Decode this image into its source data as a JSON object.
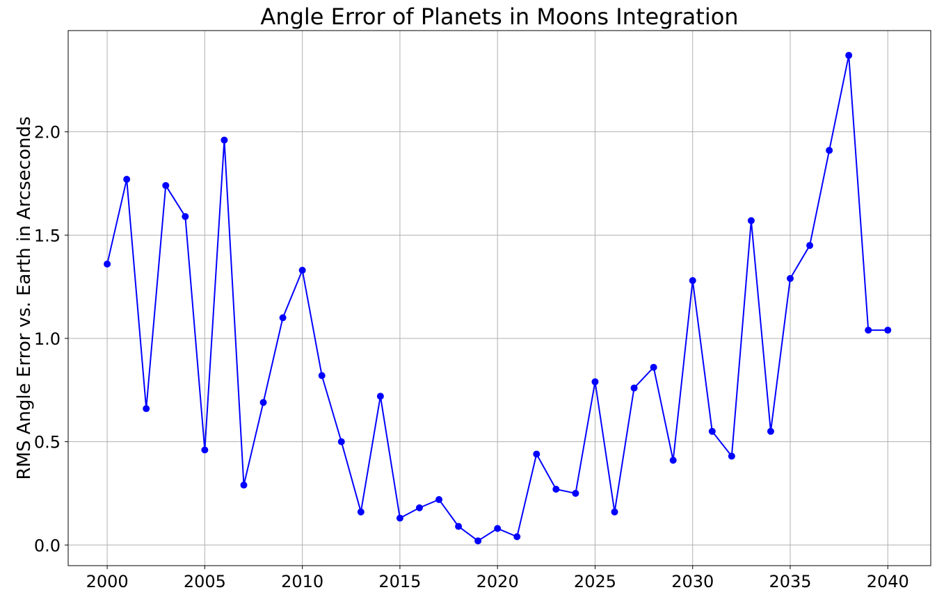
{
  "chart_data": {
    "type": "line",
    "title": "Angle Error of Planets in Moons Integration",
    "xlabel": "",
    "ylabel": "RMS Angle Error vs. Earth in Arcseconds",
    "xlim": [
      1998,
      2042.2
    ],
    "ylim": [
      -0.1,
      2.49
    ],
    "x_ticks": [
      2000,
      2005,
      2010,
      2015,
      2020,
      2025,
      2030,
      2035,
      2040
    ],
    "y_ticks": [
      0.0,
      0.5,
      1.0,
      1.5,
      2.0
    ],
    "y_tick_labels": [
      "0.0",
      "0.5",
      "1.0",
      "1.5",
      "2.0"
    ],
    "grid": true,
    "line_color": "#0000ff",
    "series": [
      {
        "marker": "circle",
        "x": [
          2000,
          2001,
          2002,
          2003,
          2004,
          2005,
          2006,
          2007,
          2008,
          2009,
          2010,
          2011,
          2012,
          2013,
          2014,
          2015,
          2016,
          2017,
          2018,
          2019,
          2020,
          2021,
          2022,
          2023,
          2024,
          2025,
          2026,
          2027,
          2028,
          2029,
          2030,
          2031,
          2032,
          2033,
          2034,
          2035,
          2036,
          2037,
          2038,
          2039,
          2040
        ],
        "y": [
          1.36,
          1.77,
          0.66,
          1.74,
          1.59,
          0.46,
          1.96,
          0.29,
          0.69,
          1.1,
          1.33,
          0.82,
          0.5,
          0.16,
          0.72,
          0.13,
          0.18,
          0.22,
          0.09,
          0.02,
          0.08,
          0.04,
          0.44,
          0.27,
          0.25,
          0.79,
          0.16,
          0.76,
          0.86,
          0.41,
          1.28,
          0.55,
          0.43,
          1.57,
          0.55,
          1.29,
          1.45,
          1.91,
          2.37,
          1.04,
          1.04
        ]
      }
    ]
  }
}
